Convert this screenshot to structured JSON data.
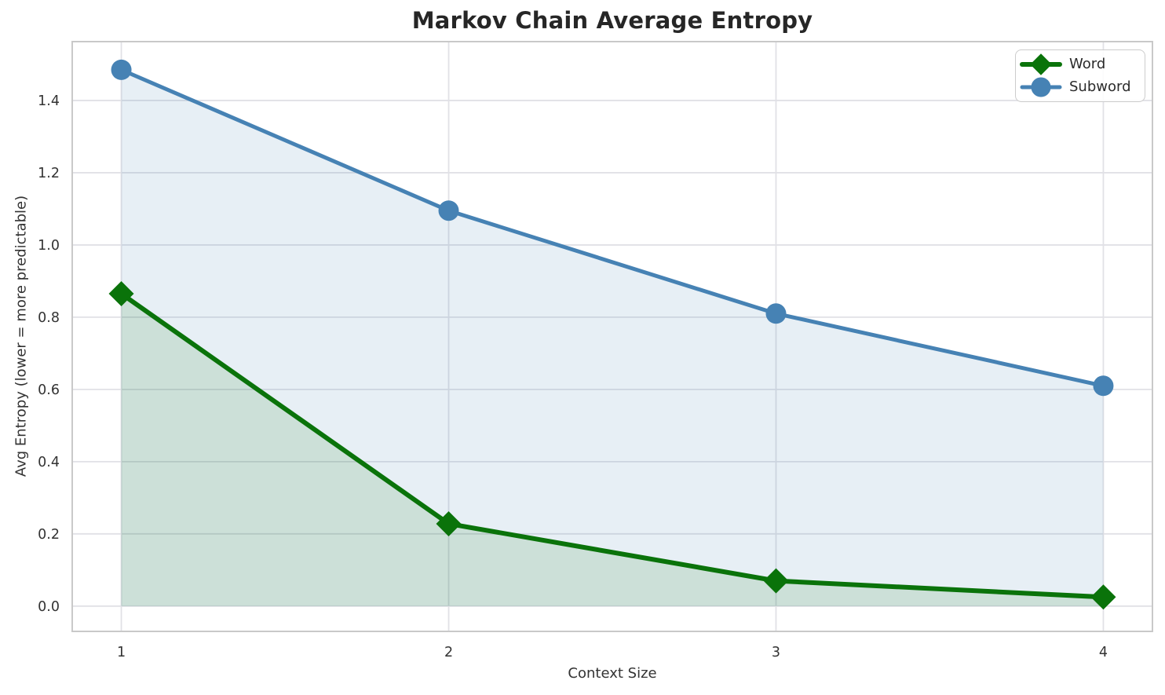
{
  "chart_data": {
    "type": "line",
    "title": "Markov Chain Average Entropy",
    "xlabel": "Context Size",
    "ylabel": "Avg Entropy (lower = more predictable)",
    "x": [
      1,
      2,
      3,
      4
    ],
    "series": [
      {
        "name": "Word",
        "marker": "diamond",
        "color": "#0a730a",
        "fill_color": "rgba(10,115,10,0.12)",
        "values": [
          0.865,
          0.228,
          0.07,
          0.025
        ]
      },
      {
        "name": "Subword",
        "marker": "circle",
        "color": "#4682b4",
        "fill_color": "rgba(70,130,180,0.13)",
        "values": [
          1.485,
          1.095,
          0.81,
          0.61
        ]
      }
    ],
    "xticks": [
      "1",
      "2",
      "3",
      "4"
    ],
    "yticks": [
      "0.0",
      "0.2",
      "0.4",
      "0.6",
      "0.8",
      "1.0",
      "1.2",
      "1.4"
    ],
    "xlim": [
      0.85,
      4.15
    ],
    "ylim": [
      -0.07,
      1.563
    ],
    "grid": true,
    "area_fill_baseline": 0.0,
    "legend_position": "upper-right",
    "grid_color": "#e1e1e6",
    "spine_color": "#c9c9c9",
    "tick_color": "#333333"
  }
}
